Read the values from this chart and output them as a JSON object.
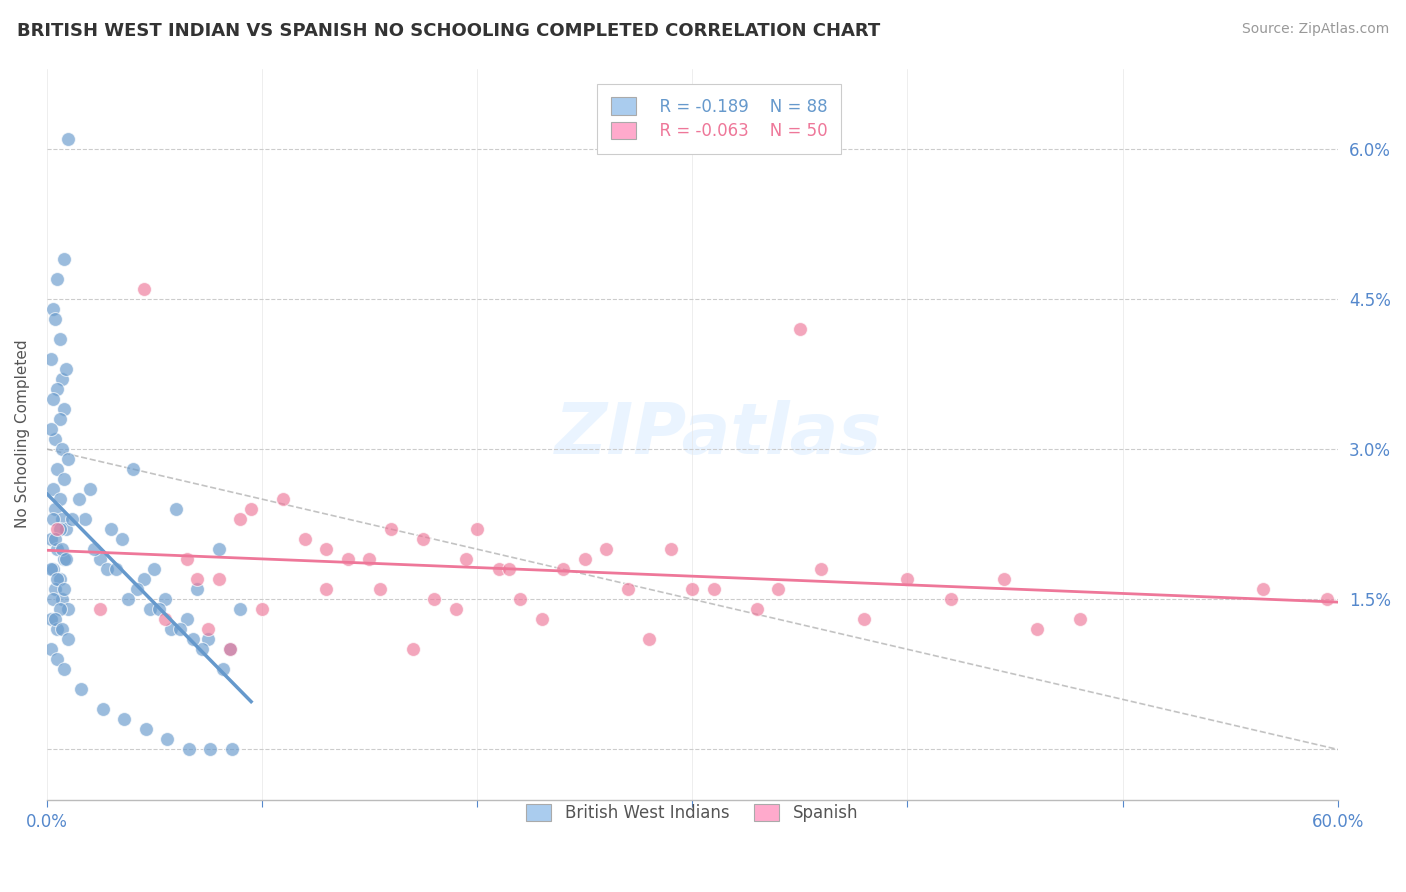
{
  "title": "BRITISH WEST INDIAN VS SPANISH NO SCHOOLING COMPLETED CORRELATION CHART",
  "source": "Source: ZipAtlas.com",
  "ylabel": "No Schooling Completed",
  "xlim": [
    0,
    0.6
  ],
  "ylim": [
    -0.005,
    0.068
  ],
  "xticks": [
    0.0,
    0.1,
    0.2,
    0.3,
    0.4,
    0.5,
    0.6
  ],
  "yticks": [
    0.0,
    0.015,
    0.03,
    0.045,
    0.06
  ],
  "legend1_label": "British West Indians",
  "legend2_label": "Spanish",
  "R1": -0.189,
  "N1": 88,
  "R2": -0.063,
  "N2": 50,
  "blue_color": "#6699cc",
  "pink_color": "#ee7799",
  "blue_fill": "#aaccee",
  "pink_fill": "#ffaacc",
  "blue_scatter_x": [
    0.01,
    0.005,
    0.008,
    0.003,
    0.006,
    0.004,
    0.007,
    0.009,
    0.002,
    0.005,
    0.008,
    0.003,
    0.006,
    0.004,
    0.007,
    0.01,
    0.002,
    0.005,
    0.008,
    0.003,
    0.006,
    0.004,
    0.007,
    0.009,
    0.002,
    0.005,
    0.008,
    0.003,
    0.006,
    0.004,
    0.007,
    0.01,
    0.002,
    0.005,
    0.003,
    0.006,
    0.004,
    0.007,
    0.009,
    0.002,
    0.005,
    0.008,
    0.003,
    0.006,
    0.004,
    0.007,
    0.01,
    0.002,
    0.005,
    0.008,
    0.04,
    0.06,
    0.02,
    0.08,
    0.03,
    0.05,
    0.07,
    0.09,
    0.015,
    0.025,
    0.045,
    0.055,
    0.065,
    0.075,
    0.035,
    0.085,
    0.018,
    0.028,
    0.048,
    0.058,
    0.012,
    0.022,
    0.032,
    0.042,
    0.052,
    0.062,
    0.072,
    0.082,
    0.038,
    0.068,
    0.016,
    0.026,
    0.036,
    0.046,
    0.056,
    0.066,
    0.076,
    0.086
  ],
  "blue_scatter_y": [
    0.061,
    0.047,
    0.049,
    0.044,
    0.041,
    0.043,
    0.037,
    0.038,
    0.039,
    0.036,
    0.034,
    0.035,
    0.033,
    0.031,
    0.03,
    0.029,
    0.032,
    0.028,
    0.027,
    0.026,
    0.025,
    0.024,
    0.023,
    0.022,
    0.021,
    0.02,
    0.019,
    0.018,
    0.017,
    0.016,
    0.015,
    0.014,
    0.013,
    0.012,
    0.023,
    0.022,
    0.021,
    0.02,
    0.019,
    0.018,
    0.017,
    0.016,
    0.015,
    0.014,
    0.013,
    0.012,
    0.011,
    0.01,
    0.009,
    0.008,
    0.028,
    0.024,
    0.026,
    0.02,
    0.022,
    0.018,
    0.016,
    0.014,
    0.025,
    0.019,
    0.017,
    0.015,
    0.013,
    0.011,
    0.021,
    0.01,
    0.023,
    0.018,
    0.014,
    0.012,
    0.023,
    0.02,
    0.018,
    0.016,
    0.014,
    0.012,
    0.01,
    0.008,
    0.015,
    0.011,
    0.006,
    0.004,
    0.003,
    0.002,
    0.001,
    0.0,
    0.0,
    0.0
  ],
  "pink_scatter_x": [
    0.005,
    0.055,
    0.085,
    0.13,
    0.175,
    0.21,
    0.095,
    0.25,
    0.3,
    0.16,
    0.22,
    0.07,
    0.19,
    0.14,
    0.26,
    0.045,
    0.11,
    0.31,
    0.075,
    0.24,
    0.18,
    0.35,
    0.065,
    0.29,
    0.155,
    0.4,
    0.23,
    0.12,
    0.33,
    0.195,
    0.09,
    0.27,
    0.15,
    0.42,
    0.025,
    0.2,
    0.36,
    0.445,
    0.13,
    0.48,
    0.08,
    0.34,
    0.215,
    0.565,
    0.17,
    0.38,
    0.595,
    0.28,
    0.1,
    0.46
  ],
  "pink_scatter_y": [
    0.022,
    0.013,
    0.01,
    0.02,
    0.021,
    0.018,
    0.024,
    0.019,
    0.016,
    0.022,
    0.015,
    0.017,
    0.014,
    0.019,
    0.02,
    0.046,
    0.025,
    0.016,
    0.012,
    0.018,
    0.015,
    0.042,
    0.019,
    0.02,
    0.016,
    0.017,
    0.013,
    0.021,
    0.014,
    0.019,
    0.023,
    0.016,
    0.019,
    0.015,
    0.014,
    0.022,
    0.018,
    0.017,
    0.016,
    0.013,
    0.017,
    0.016,
    0.018,
    0.016,
    0.01,
    0.013,
    0.015,
    0.011,
    0.014,
    0.012
  ],
  "ref_line_x": [
    0.0,
    0.6
  ],
  "ref_line_y": [
    0.03,
    0.0
  ]
}
